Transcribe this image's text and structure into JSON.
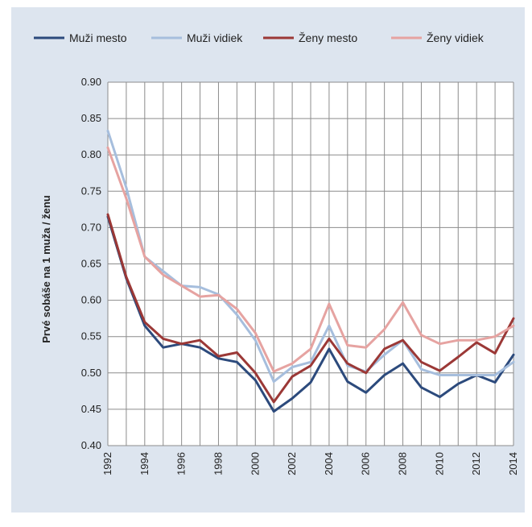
{
  "chart_data": {
    "type": "line",
    "ylabel": "Prvé sobáše na 1 muža / ženu",
    "xlabel": "",
    "ylim": [
      0.4,
      0.9
    ],
    "yticks": [
      "0.40",
      "0.45",
      "0.50",
      "0.55",
      "0.60",
      "0.65",
      "0.70",
      "0.75",
      "0.80",
      "0.85",
      "0.90"
    ],
    "xlim": [
      1992,
      2014
    ],
    "xticks": [
      "1992",
      "1994",
      "1996",
      "1998",
      "2000",
      "2002",
      "2004",
      "2006",
      "2008",
      "2010",
      "2012",
      "2014"
    ],
    "x": [
      1992,
      1993,
      1994,
      1995,
      1996,
      1997,
      1998,
      1999,
      2000,
      2001,
      2002,
      2003,
      2004,
      2005,
      2006,
      2007,
      2008,
      2009,
      2010,
      2011,
      2012,
      2013,
      2014
    ],
    "grid": true,
    "legend_position": "top",
    "series": [
      {
        "name": "Muži mesto",
        "color": "#2c4a7c",
        "values": [
          0.715,
          0.63,
          0.565,
          0.535,
          0.54,
          0.535,
          0.52,
          0.515,
          0.49,
          0.447,
          0.465,
          0.487,
          0.533,
          0.488,
          0.473,
          0.497,
          0.513,
          0.48,
          0.467,
          0.485,
          0.497,
          0.487,
          0.525
        ]
      },
      {
        "name": "Muži vidiek",
        "color": "#a6bedd",
        "values": [
          0.833,
          0.755,
          0.66,
          0.64,
          0.62,
          0.618,
          0.608,
          0.58,
          0.545,
          0.488,
          0.508,
          0.515,
          0.565,
          0.51,
          0.502,
          0.525,
          0.545,
          0.505,
          0.497,
          0.497,
          0.497,
          0.497,
          0.515
        ]
      },
      {
        "name": "Ženy mesto",
        "color": "#9b3836",
        "values": [
          0.718,
          0.632,
          0.57,
          0.547,
          0.54,
          0.545,
          0.523,
          0.528,
          0.5,
          0.46,
          0.495,
          0.51,
          0.547,
          0.513,
          0.5,
          0.533,
          0.545,
          0.515,
          0.503,
          0.522,
          0.542,
          0.527,
          0.575
        ]
      },
      {
        "name": "Ženy vidiek",
        "color": "#e6a3a1",
        "values": [
          0.81,
          0.74,
          0.66,
          0.635,
          0.62,
          0.605,
          0.607,
          0.588,
          0.555,
          0.502,
          0.513,
          0.533,
          0.595,
          0.538,
          0.535,
          0.56,
          0.597,
          0.552,
          0.54,
          0.545,
          0.545,
          0.55,
          0.565
        ]
      }
    ]
  }
}
